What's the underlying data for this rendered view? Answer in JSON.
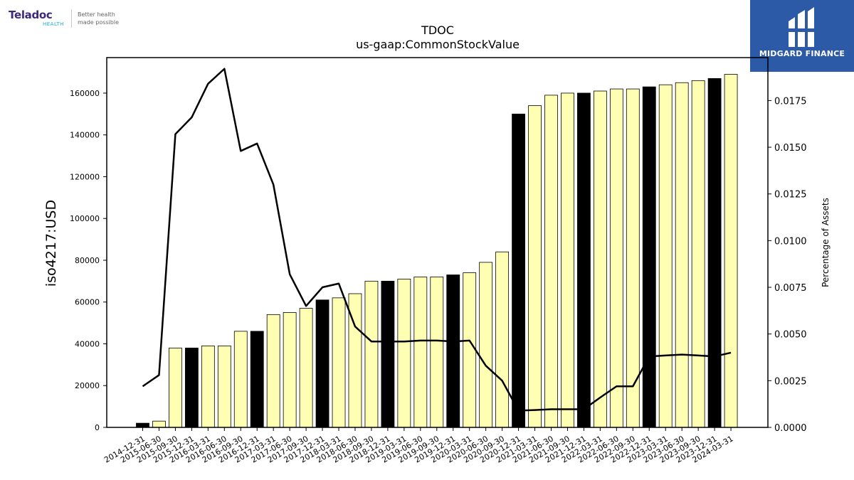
{
  "branding": {
    "company_name": "Teladoc",
    "company_sub": "HEALTH",
    "company_tagline_1": "Better health",
    "company_tagline_2": "made possible",
    "publisher_name": "MIDGARD FINANCE"
  },
  "colors": {
    "bar_fill": "#ffffb3",
    "bar_highlight": "#000000",
    "line": "#000000",
    "publisher_bg": "#2d5aa6"
  },
  "chart_data": {
    "type": "bar",
    "title": "TDOC",
    "subtitle": "us-gaap:CommonStockValue",
    "ylabel": "iso4217:USD",
    "y2label": "Percentage of Assets",
    "ylim": [
      0,
      177000
    ],
    "y2lim": [
      0,
      0.0198
    ],
    "yticks": [
      0,
      20000,
      40000,
      60000,
      80000,
      100000,
      120000,
      140000,
      160000
    ],
    "y2ticks": [
      "0.0000",
      "0.0025",
      "0.0050",
      "0.0075",
      "0.0100",
      "0.0125",
      "0.0150",
      "0.0175"
    ],
    "categories": [
      "2014-12-31",
      "2015-06-30",
      "2015-09-30",
      "2015-12-31",
      "2016-03-31",
      "2016-06-30",
      "2016-09-30",
      "2016-12-31",
      "2017-03-31",
      "2017-06-30",
      "2017-09-30",
      "2017-12-31",
      "2018-03-31",
      "2018-06-30",
      "2018-09-30",
      "2018-12-31",
      "2019-03-31",
      "2019-06-30",
      "2019-09-30",
      "2019-12-31",
      "2020-03-31",
      "2020-06-30",
      "2020-09-30",
      "2020-12-31",
      "2021-03-31",
      "2021-06-30",
      "2021-09-30",
      "2021-12-31",
      "2022-03-31",
      "2022-06-30",
      "2022-09-30",
      "2022-12-31",
      "2023-03-31",
      "2023-06-30",
      "2023-09-30",
      "2023-12-31",
      "2024-03-31"
    ],
    "series": [
      {
        "kind": "bar",
        "values": [
          2000,
          3000,
          38000,
          38000,
          39000,
          39000,
          46000,
          46000,
          54000,
          55000,
          57000,
          61000,
          62000,
          64000,
          70000,
          70000,
          71000,
          72000,
          72000,
          73000,
          74000,
          79000,
          84000,
          150000,
          154000,
          159000,
          160000,
          160000,
          161000,
          162000,
          162000,
          163000,
          164000,
          165000,
          166000,
          167000,
          169000
        ],
        "highlight": [
          1,
          0,
          0,
          1,
          0,
          0,
          0,
          1,
          0,
          0,
          0,
          1,
          0,
          0,
          0,
          1,
          0,
          0,
          0,
          1,
          0,
          0,
          0,
          1,
          0,
          0,
          0,
          1,
          0,
          0,
          0,
          1,
          0,
          0,
          0,
          1,
          0
        ]
      },
      {
        "kind": "line",
        "axis": "right",
        "values": [
          0.0022,
          0.0028,
          0.0157,
          0.0166,
          0.0184,
          0.0192,
          0.0148,
          0.0152,
          0.013,
          0.0082,
          0.0065,
          0.0075,
          0.0077,
          0.0054,
          0.0046,
          0.0046,
          0.0046,
          0.00465,
          0.00465,
          0.0046,
          0.00465,
          0.0033,
          0.0025,
          0.0009,
          0.00093,
          0.00097,
          0.00097,
          0.00097,
          0.0016,
          0.0022,
          0.0022,
          0.0038,
          0.00385,
          0.0039,
          0.00385,
          0.0038,
          0.004
        ]
      }
    ]
  }
}
